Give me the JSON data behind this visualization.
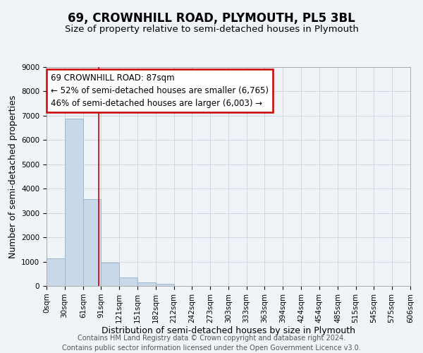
{
  "title": "69, CROWNHILL ROAD, PLYMOUTH, PL5 3BL",
  "subtitle": "Size of property relative to semi-detached houses in Plymouth",
  "bar_left_edges": [
    0,
    30,
    61,
    91,
    121,
    151,
    182,
    212,
    242,
    273,
    303,
    333,
    363,
    394,
    424,
    454,
    485,
    515,
    545,
    575
  ],
  "bar_widths": [
    30,
    31,
    30,
    30,
    30,
    31,
    30,
    30,
    31,
    30,
    30,
    30,
    31,
    30,
    30,
    31,
    30,
    30,
    30,
    31
  ],
  "bar_heights": [
    1120,
    6890,
    3560,
    970,
    350,
    140,
    100,
    0,
    0,
    0,
    0,
    0,
    0,
    0,
    0,
    0,
    0,
    0,
    0,
    0
  ],
  "bar_color": "#c8d8e8",
  "bar_edgecolor": "#a0b8cc",
  "property_line_x": 87,
  "property_size": 87,
  "annotation_title": "69 CROWNHILL ROAD: 87sqm",
  "annotation_line1": "← 52% of semi-detached houses are smaller (6,765)",
  "annotation_line2": "46% of semi-detached houses are larger (6,003) →",
  "annotation_box_color": "#ffffff",
  "annotation_box_edgecolor": "#cc0000",
  "vline_color": "#cc0000",
  "xlabel": "Distribution of semi-detached houses by size in Plymouth",
  "ylabel": "Number of semi-detached properties",
  "ylim": [
    0,
    9000
  ],
  "xlim": [
    0,
    606
  ],
  "xtick_labels": [
    "0sqm",
    "30sqm",
    "61sqm",
    "91sqm",
    "121sqm",
    "151sqm",
    "182sqm",
    "212sqm",
    "242sqm",
    "273sqm",
    "303sqm",
    "333sqm",
    "363sqm",
    "394sqm",
    "424sqm",
    "454sqm",
    "485sqm",
    "515sqm",
    "545sqm",
    "575sqm",
    "606sqm"
  ],
  "xtick_positions": [
    0,
    30,
    61,
    91,
    121,
    151,
    182,
    212,
    242,
    273,
    303,
    333,
    363,
    394,
    424,
    454,
    485,
    515,
    545,
    575,
    606
  ],
  "ytick_positions": [
    0,
    1000,
    2000,
    3000,
    4000,
    5000,
    6000,
    7000,
    8000,
    9000
  ],
  "footer_line1": "Contains HM Land Registry data © Crown copyright and database right 2024.",
  "footer_line2": "Contains public sector information licensed under the Open Government Licence v3.0.",
  "grid_color": "#d0d8e0",
  "background_color": "#f0f4f8",
  "title_fontsize": 12,
  "subtitle_fontsize": 9.5,
  "axis_label_fontsize": 9,
  "tick_fontsize": 7.5,
  "annotation_fontsize": 8.5,
  "footer_fontsize": 7
}
